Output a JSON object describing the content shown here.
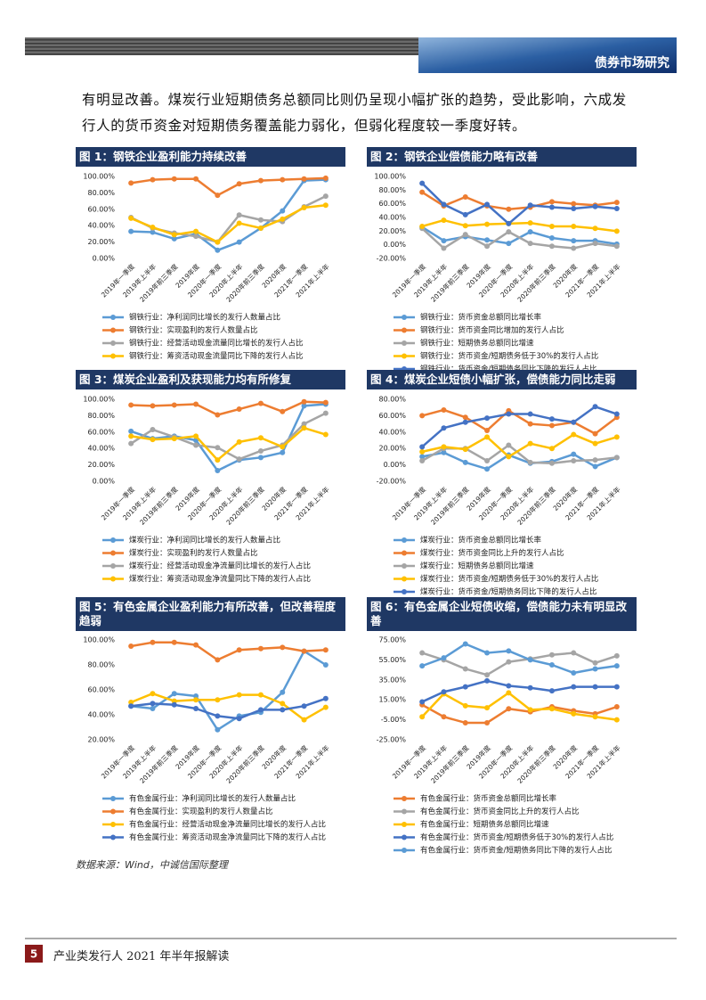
{
  "header": {
    "title": "债券市场研究"
  },
  "body": [
    "有明显改善。煤炭行业短期债务总额同比则仍呈现小幅扩张的趋势，受此影响，六成发行人的货币资金对短期债务覆盖能力弱化，但弱化程度较一季度好转。"
  ],
  "chart_data": [
    {
      "type": "line",
      "title": "图 1：钢铁企业盈利能力持续改善",
      "categories": [
        "2019年一季度",
        "2019年上半年",
        "2019年前三季度",
        "2019年度",
        "2020年一季度",
        "2020年上半年",
        "2020年前三季度",
        "2020年度",
        "2021年一季度",
        "2021年上半年"
      ],
      "ylim": [
        0,
        100
      ],
      "yticks": [
        {
          "value": 0,
          "label": "0.00%"
        },
        {
          "value": 20,
          "label": "20.00%"
        },
        {
          "value": 40,
          "label": "40.00%"
        },
        {
          "value": 60,
          "label": "60.00%"
        },
        {
          "value": 80,
          "label": "80.00%"
        },
        {
          "value": 100,
          "label": "100.00%"
        }
      ],
      "grid": false,
      "series": [
        {
          "name": "钢铁行业：净利润同比增长的发行人数量占比",
          "color": "#5b9bd5",
          "values": [
            33,
            32,
            24,
            30,
            10,
            20,
            37,
            58,
            95,
            96
          ]
        },
        {
          "name": "钢铁行业：实现盈利的发行人数量占比",
          "color": "#ed7d31",
          "values": [
            92,
            96,
            97,
            97,
            77,
            91,
            95,
            96,
            97,
            98
          ]
        },
        {
          "name": "钢铁行业：经营活动现金流量同比增长的发行人占比",
          "color": "#a5a5a5",
          "values": [
            50,
            37,
            31,
            27,
            20,
            53,
            47,
            45,
            63,
            76
          ]
        },
        {
          "name": "钢铁行业：筹资活动现金流量同比下降的发行人占比",
          "color": "#ffc000",
          "values": [
            49,
            38,
            29,
            33,
            20,
            43,
            37,
            48,
            62,
            65
          ]
        }
      ]
    },
    {
      "type": "line",
      "title": "图 2：钢铁企业偿债能力略有改善",
      "categories": [
        "2019年一季度",
        "2019年上半年",
        "2019年前三季度",
        "2019年度",
        "2020年一季度",
        "2020年上半年",
        "2020年前三季度",
        "2020年度",
        "2021年一季度",
        "2021年上半年"
      ],
      "ylim": [
        -20,
        100
      ],
      "yticks": [
        {
          "value": -20,
          "label": "-20.00%"
        },
        {
          "value": 0,
          "label": "0.00%"
        },
        {
          "value": 20,
          "label": "20.00%"
        },
        {
          "value": 40,
          "label": "40.00%"
        },
        {
          "value": 60,
          "label": "60.00%"
        },
        {
          "value": 80,
          "label": "80.00%"
        },
        {
          "value": 100,
          "label": "100.00%"
        }
      ],
      "grid": false,
      "series": [
        {
          "name": "钢铁行业：货币资金总额同比增长率",
          "color": "#5b9bd5",
          "values": [
            26,
            6,
            12,
            7,
            2,
            19,
            10,
            6,
            6,
            1
          ]
        },
        {
          "name": "钢铁行业：货币资金同比增加的发行人占比",
          "color": "#ed7d31",
          "values": [
            77,
            57,
            70,
            57,
            52,
            55,
            63,
            60,
            58,
            62
          ]
        },
        {
          "name": "钢铁行业：短期债务总额同比增速",
          "color": "#a5a5a5",
          "values": [
            24,
            -5,
            15,
            -2,
            19,
            2,
            -2,
            -5,
            2,
            -2
          ]
        },
        {
          "name": "钢铁行业：货币资金/短期债务低于30%的发行人占比",
          "color": "#ffc000",
          "values": [
            27,
            36,
            28,
            30,
            31,
            32,
            27,
            27,
            24,
            20
          ]
        },
        {
          "name": "钢铁行业：货币资金/短期债务同比下降的发行人占比",
          "color": "#4472c4",
          "values": [
            90,
            59,
            44,
            59,
            31,
            58,
            55,
            53,
            56,
            53
          ]
        }
      ]
    },
    {
      "type": "line",
      "title": "图 3：煤炭企业盈利及获现能力均有所修复",
      "categories": [
        "2019年一季度",
        "2019年上半年",
        "2019年前三季度",
        "2019年度",
        "2020年一季度",
        "2020年上半年",
        "2020年前三季度",
        "2020年度",
        "2021年一季度",
        "2021年上半年"
      ],
      "ylim": [
        0,
        100
      ],
      "yticks": [
        {
          "value": 0,
          "label": "0.00%"
        },
        {
          "value": 20,
          "label": "20.00%"
        },
        {
          "value": 40,
          "label": "40.00%"
        },
        {
          "value": 60,
          "label": "60.00%"
        },
        {
          "value": 80,
          "label": "80.00%"
        },
        {
          "value": 100,
          "label": "100.00%"
        }
      ],
      "grid": false,
      "series": [
        {
          "name": "煤炭行业：净利润同比增长的发行人数量占比",
          "color": "#5b9bd5",
          "values": [
            61,
            52,
            55,
            50,
            13,
            26,
            29,
            35,
            92,
            94
          ]
        },
        {
          "name": "煤炭行业：实现盈利的发行人数量占比",
          "color": "#ed7d31",
          "values": [
            93,
            92,
            93,
            94,
            81,
            88,
            95,
            85,
            97,
            96
          ]
        },
        {
          "name": "煤炭行业：经营活动现金净流量同比增长的发行人占比",
          "color": "#a5a5a5",
          "values": [
            46,
            63,
            54,
            44,
            41,
            27,
            37,
            44,
            70,
            83
          ]
        },
        {
          "name": "煤炭行业：筹资活动现金净流量同比下降的发行人占比",
          "color": "#ffc000",
          "values": [
            55,
            51,
            52,
            55,
            26,
            48,
            53,
            42,
            65,
            57
          ]
        }
      ]
    },
    {
      "type": "line",
      "title": "图 4：煤炭企业短债小幅扩张，偿债能力同比走弱",
      "categories": [
        "2019年一季度",
        "2019年上半年",
        "2019年前三季度",
        "2019年度",
        "2020年一季度",
        "2020年上半年",
        "2020年前三季度",
        "2020年度",
        "2021年一季度",
        "2021年上半年"
      ],
      "ylim": [
        -20,
        80
      ],
      "yticks": [
        {
          "value": -20,
          "label": "-20.00%"
        },
        {
          "value": 0,
          "label": "0.00%"
        },
        {
          "value": 20,
          "label": "20.00%"
        },
        {
          "value": 40,
          "label": "40.00%"
        },
        {
          "value": 60,
          "label": "60.00%"
        },
        {
          "value": 80,
          "label": "80.00%"
        }
      ],
      "grid": false,
      "series": [
        {
          "name": "煤炭行业：货币资金总额同比增长率",
          "color": "#5b9bd5",
          "values": [
            10,
            15,
            3,
            -5,
            12,
            2,
            4,
            13,
            -2,
            9
          ]
        },
        {
          "name": "煤炭行业：货币资金同比上升的发行人占比",
          "color": "#ed7d31",
          "values": [
            60,
            67,
            58,
            42,
            66,
            50,
            48,
            52,
            38,
            58
          ]
        },
        {
          "name": "煤炭行业：短期债务总额同比增速",
          "color": "#a5a5a5",
          "values": [
            5,
            20,
            20,
            5,
            24,
            3,
            2,
            5,
            6,
            9
          ]
        },
        {
          "name": "煤炭行业：货币资金/短期债务低于30%的发行人占比",
          "color": "#ffc000",
          "values": [
            16,
            22,
            19,
            34,
            10,
            26,
            20,
            37,
            26,
            34
          ]
        },
        {
          "name": "煤炭行业：货币资金/短期债务同比下降的发行人占比",
          "color": "#4472c4",
          "values": [
            22,
            45,
            52,
            57,
            62,
            62,
            56,
            52,
            71,
            62
          ]
        }
      ]
    },
    {
      "type": "line",
      "title": "图 5：有色金属企业盈利能力有所改善，但改善程度趋弱",
      "categories": [
        "2019年一季度",
        "2019年上半年",
        "2019年前三季度",
        "2019年度",
        "2020年一季度",
        "2020年上半年",
        "2020年前三季度",
        "2020年度",
        "2021年一季度",
        "2021年上半年"
      ],
      "ylim": [
        20,
        100
      ],
      "yticks": [
        {
          "value": 20,
          "label": "20.00%"
        },
        {
          "value": 40,
          "label": "40.00%"
        },
        {
          "value": 60,
          "label": "60.00%"
        },
        {
          "value": 80,
          "label": "80.00%"
        },
        {
          "value": 100,
          "label": "100.00%"
        }
      ],
      "grid": false,
      "series": [
        {
          "name": "有色金属行业：净利润同比增长的发行人数量占比",
          "color": "#5b9bd5",
          "values": [
            47,
            45,
            57,
            55,
            28,
            39,
            42,
            58,
            91,
            80
          ]
        },
        {
          "name": "有色金属行业：实现盈利的发行人数量占比",
          "color": "#ed7d31",
          "values": [
            95,
            98,
            98,
            96,
            84,
            92,
            93,
            94,
            91,
            92
          ]
        },
        {
          "name": "有色金属行业：经营活动现金净流量同比增长的发行人占比",
          "color": "#ffc000",
          "values": [
            50,
            57,
            51,
            52,
            52,
            56,
            56,
            49,
            36,
            46
          ]
        },
        {
          "name": "有色金属行业：筹资活动现金净流量同比下降的发行人占比",
          "color": "#4472c4",
          "values": [
            47,
            49,
            48,
            45,
            39,
            37,
            44,
            44,
            47,
            53
          ]
        }
      ]
    },
    {
      "type": "line",
      "title": "图 6：有色金属企业短债收缩，偿债能力未有明显改善",
      "categories": [
        "2019年一季度",
        "2019年上半年",
        "2019年前三季度",
        "2019年度",
        "2020年一季度",
        "2020年上半年",
        "2020年前三季度",
        "2020年度",
        "2021年一季度",
        "2021年上半年"
      ],
      "ylim": [
        -25,
        75
      ],
      "yticks": [
        {
          "value": -25,
          "label": "-25.00%"
        },
        {
          "value": -5,
          "label": "-5.00%"
        },
        {
          "value": 15,
          "label": "15.00%"
        },
        {
          "value": 35,
          "label": "35.00%"
        },
        {
          "value": 55,
          "label": "55.00%"
        },
        {
          "value": 75,
          "label": "75.00%"
        }
      ],
      "grid": false,
      "series": [
        {
          "name": "有色金属行业：货币资金总额同比增长率",
          "color": "#ed7d31",
          "values": [
            10,
            -2,
            -8,
            -8,
            6,
            3,
            8,
            4,
            1,
            8
          ]
        },
        {
          "name": "有色金属行业：货币资金同比上升的发行人占比",
          "color": "#a5a5a5",
          "values": [
            62,
            55,
            46,
            40,
            53,
            56,
            60,
            62,
            52,
            59
          ]
        },
        {
          "name": "有色金属行业：短期债务总额同比增速",
          "color": "#ffc000",
          "values": [
            -2,
            21,
            9,
            7,
            22,
            5,
            6,
            1,
            -2,
            -5
          ]
        },
        {
          "name": "有色金属行业：货币资金/短期债务低于30%的发行人占比",
          "color": "#4472c4",
          "values": [
            13,
            23,
            28,
            34,
            29,
            27,
            24,
            28,
            28,
            28
          ]
        },
        {
          "name": "有色金属行业：货币资金/短期债务同比下降的发行人占比",
          "color": "#5b9bd5",
          "values": [
            49,
            57,
            71,
            62,
            64,
            55,
            50,
            42,
            46,
            49
          ]
        }
      ]
    }
  ],
  "source": "数据来源：Wind，中诚信国际整理",
  "footer": {
    "page": "5",
    "text": "产业类发行人 2021 年半年报解读"
  }
}
